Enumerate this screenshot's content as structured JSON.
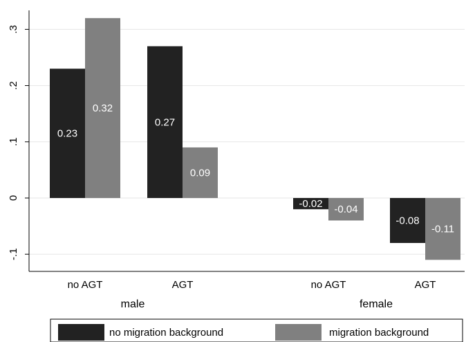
{
  "chart_data": {
    "type": "bar",
    "groups": [
      {
        "name": "male",
        "categories": [
          "no AGT",
          "AGT"
        ]
      },
      {
        "name": "female",
        "categories": [
          "no AGT",
          "AGT"
        ]
      }
    ],
    "categories": [
      "no AGT",
      "AGT",
      "no AGT",
      "AGT"
    ],
    "series": [
      {
        "name": "no migration background",
        "values": [
          0.23,
          0.27,
          -0.02,
          -0.08
        ],
        "labels": [
          "0.23",
          "0.27",
          "-0.02",
          "-0.08"
        ],
        "color": "#222222"
      },
      {
        "name": "migration background",
        "values": [
          0.32,
          0.09,
          -0.04,
          -0.11
        ],
        "labels": [
          "0.32",
          "0.09",
          "-0.04",
          "-0.11"
        ],
        "color": "#808080"
      }
    ],
    "ylim": [
      -0.125,
      0.35
    ],
    "yticks": [
      -0.1,
      0,
      0.1,
      0.2,
      0.3
    ],
    "ytick_labels": [
      "-.1",
      "0",
      ".1",
      ".2",
      ".3"
    ],
    "grid": true,
    "legend_position": "bottom",
    "title": "",
    "xlabel": "",
    "ylabel": ""
  }
}
